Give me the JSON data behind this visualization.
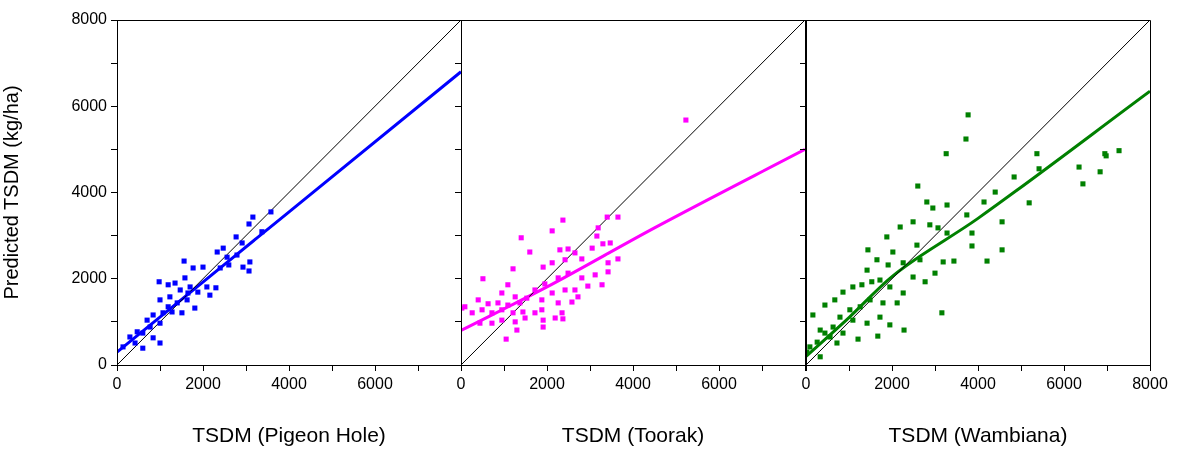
{
  "chart_data": [
    {
      "type": "scatter",
      "xlabel": "TSDM (Pigeon Hole)",
      "ylabel": "Predicted TSDM (kg/ha)",
      "xlim": [
        0,
        8000
      ],
      "ylim": [
        0,
        8000
      ],
      "tick_labels": "xy",
      "xticks": [
        0,
        {
          "value": 1000,
          "label": null
        },
        2000,
        {
          "value": 3000,
          "label": null
        },
        4000,
        {
          "value": 5000,
          "label": null
        },
        6000,
        {
          "value": 7000,
          "label": null
        },
        {
          "value": 8000,
          "label": null
        }
      ],
      "yticks": [
        0,
        {
          "value": 1000,
          "label": null
        },
        2000,
        {
          "value": 3000,
          "label": null
        },
        4000,
        {
          "value": 5000,
          "label": null
        },
        6000,
        {
          "value": 7000,
          "label": null
        },
        8000
      ],
      "grid": false,
      "legend": false,
      "series": [
        {
          "marker": "square",
          "color": "#0000ff",
          "x": [
            3580,
            3160,
            3070,
            3370,
            2770,
            2910,
            2470,
            2330,
            2560,
            2790,
            3090,
            3070,
            2930,
            2600,
            2400,
            1560,
            1770,
            2000,
            980,
            1190,
            1350,
            1580,
            1700,
            1880,
            2090,
            2160,
            2300,
            1650,
            1470,
            1230,
            1000,
            1190,
            1400,
            1630,
            1810,
            1510,
            1280,
            1070,
            840,
            700,
            1000,
            770,
            600,
            840,
            1000,
            300,
            420,
            140,
            600,
            470
          ],
          "values": [
            3550,
            3430,
            3270,
            3090,
            2970,
            2830,
            2710,
            2620,
            2500,
            2550,
            2390,
            2180,
            2270,
            2320,
            2250,
            2410,
            2250,
            2270,
            1930,
            1860,
            1900,
            2020,
            1810,
            1690,
            1810,
            1620,
            1790,
            1670,
            1740,
            1580,
            1510,
            1350,
            1440,
            1510,
            1320,
            1210,
            1230,
            1210,
            1160,
            1040,
            970,
            880,
            740,
            630,
            510,
            650,
            510,
            420,
            390,
            770
          ]
        },
        {
          "type": "line",
          "color": "#000000",
          "x": [
            0,
            8000
          ],
          "values": [
            0,
            8000
          ]
        },
        {
          "type": "line",
          "color": "#0000ff",
          "x": [
            0,
            8000
          ],
          "values": [
            300,
            6800
          ]
        }
      ]
    },
    {
      "type": "scatter",
      "xlabel": "TSDM (Toorak)",
      "xlim": [
        0,
        8000
      ],
      "ylim": [
        0,
        8000
      ],
      "tick_labels": "x",
      "xticks": [
        0,
        {
          "value": 1000,
          "label": null
        },
        2000,
        {
          "value": 3000,
          "label": null
        },
        4000,
        {
          "value": 5000,
          "label": null
        },
        6000,
        {
          "value": 7000,
          "label": null
        },
        {
          "value": 8000,
          "label": null
        }
      ],
      "yticks": [
        0,
        {
          "value": 1000,
          "label": null
        },
        2000,
        {
          "value": 3000,
          "label": null
        },
        4000,
        {
          "value": 5000,
          "label": null
        },
        6000,
        {
          "value": 7000,
          "label": null
        },
        8000
      ],
      "grid": false,
      "legend": false,
      "series": [
        {
          "marker": "square",
          "color": "#ff00ff",
          "x": [
            5230,
            2370,
            2120,
            1400,
            1600,
            3400,
            3650,
            3190,
            3160,
            3300,
            3470,
            3050,
            2300,
            2490,
            2650,
            3650,
            3420,
            2810,
            2420,
            2120,
            1910,
            1210,
            510,
            3420,
            3120,
            2810,
            2490,
            2260,
            3280,
            2950,
            2650,
            2420,
            1950,
            1720,
            1090,
            950,
            2720,
            2580,
            2120,
            1880,
            1530,
            1260,
            1370,
            1090,
            860,
            630,
            400,
            90,
            20,
            260,
            490,
            720,
            950,
            1210,
            1440,
            1720,
            1880,
            2260,
            2350,
            2190,
            2370,
            1910,
            1490,
            1260,
            950,
            720,
            440,
            1910,
            1300,
            1050
          ],
          "values": [
            5680,
            3360,
            3110,
            2950,
            2620,
            3430,
            3430,
            3180,
            2990,
            2810,
            2830,
            2710,
            2670,
            2690,
            2600,
            2460,
            2370,
            2460,
            2440,
            2370,
            2270,
            2230,
            2000,
            2160,
            2090,
            2020,
            2130,
            2020,
            1860,
            1830,
            1740,
            1740,
            1880,
            1740,
            1860,
            1670,
            1580,
            1460,
            1670,
            1510,
            1550,
            1580,
            1440,
            1390,
            1440,
            1420,
            1510,
            1350,
            1320,
            1210,
            1280,
            1210,
            1280,
            1210,
            1230,
            1210,
            1280,
            1440,
            1210,
            1090,
            1070,
            1040,
            1090,
            1000,
            1040,
            970,
            970,
            880,
            810,
            600
          ]
        },
        {
          "type": "line",
          "color": "#000000",
          "x": [
            0,
            8000
          ],
          "values": [
            0,
            8000
          ]
        },
        {
          "type": "line",
          "color": "#ff00ff",
          "x": [
            0,
            2000,
            4500,
            8000
          ],
          "values": [
            800,
            1810,
            3180,
            5000
          ]
        }
      ]
    },
    {
      "type": "scatter",
      "xlabel": "TSDM (Wambiana)",
      "xlim": [
        0,
        8000
      ],
      "ylim": [
        0,
        8000
      ],
      "tick_labels": "x",
      "xticks": [
        0,
        {
          "value": 1000,
          "label": null
        },
        2000,
        {
          "value": 3000,
          "label": null
        },
        4000,
        {
          "value": 5000,
          "label": null
        },
        6000,
        {
          "value": 7000,
          "label": null
        },
        8000
      ],
      "yticks": [
        0,
        {
          "value": 1000,
          "label": null
        },
        2000,
        {
          "value": 3000,
          "label": null
        },
        4000,
        {
          "value": 5000,
          "label": null
        },
        6000,
        {
          "value": 7000,
          "label": null
        },
        8000
      ],
      "grid": false,
      "legend": false,
      "series": [
        {
          "marker": "square",
          "color": "#008000",
          "x": [
            3770,
            3720,
            3260,
            2600,
            2810,
            2950,
            3280,
            5370,
            5420,
            4840,
            4400,
            4140,
            5190,
            4560,
            4560,
            4210,
            3860,
            3860,
            3740,
            3440,
            3190,
            3160,
            3280,
            3070,
            2880,
            2490,
            2190,
            1880,
            2020,
            1440,
            1650,
            1910,
            2260,
            2650,
            2580,
            2490,
            2770,
            3000,
            1420,
            1300,
            1530,
            1090,
            860,
            670,
            440,
            160,
            1720,
            1950,
            2260,
            2120,
            1790,
            1490,
            1260,
            1020,
            1720,
            1950,
            2280,
            1670,
            1210,
            1420,
            1090,
            790,
            630,
            330,
            560,
            860,
            260,
            90,
            330,
            20,
            720,
            440,
            6350,
            6440,
            6840,
            6950,
            6980,
            7280
          ],
          "values": [
            5800,
            5240,
            4900,
            4150,
            3780,
            3640,
            3710,
            4900,
            4550,
            4360,
            4010,
            3780,
            3760,
            3320,
            2670,
            2410,
            3060,
            2760,
            3480,
            2410,
            2390,
            1210,
            3060,
            3180,
            3250,
            3320,
            3200,
            2970,
            2620,
            2670,
            2440,
            2320,
            2370,
            2440,
            2780,
            2040,
            1930,
            2130,
            2200,
            1860,
            1930,
            1810,
            1690,
            1510,
            1390,
            1160,
            1970,
            1810,
            1670,
            1440,
            1440,
            1510,
            1350,
            1280,
            1110,
            930,
            810,
            670,
            600,
            970,
            1040,
            1110,
            880,
            810,
            650,
            740,
            530,
            420,
            190,
            300,
            510,
            740,
            4590,
            4200,
            4480,
            4900,
            4850,
            4970
          ]
        },
        {
          "type": "line",
          "color": "#000000",
          "x": [
            0,
            8000
          ],
          "values": [
            0,
            8000
          ]
        },
        {
          "type": "line",
          "color": "#008000",
          "x": [
            0,
            1000,
            2000,
            4000,
            8000
          ],
          "values": [
            200,
            1100,
            2050,
            3400,
            6350
          ]
        }
      ]
    }
  ]
}
